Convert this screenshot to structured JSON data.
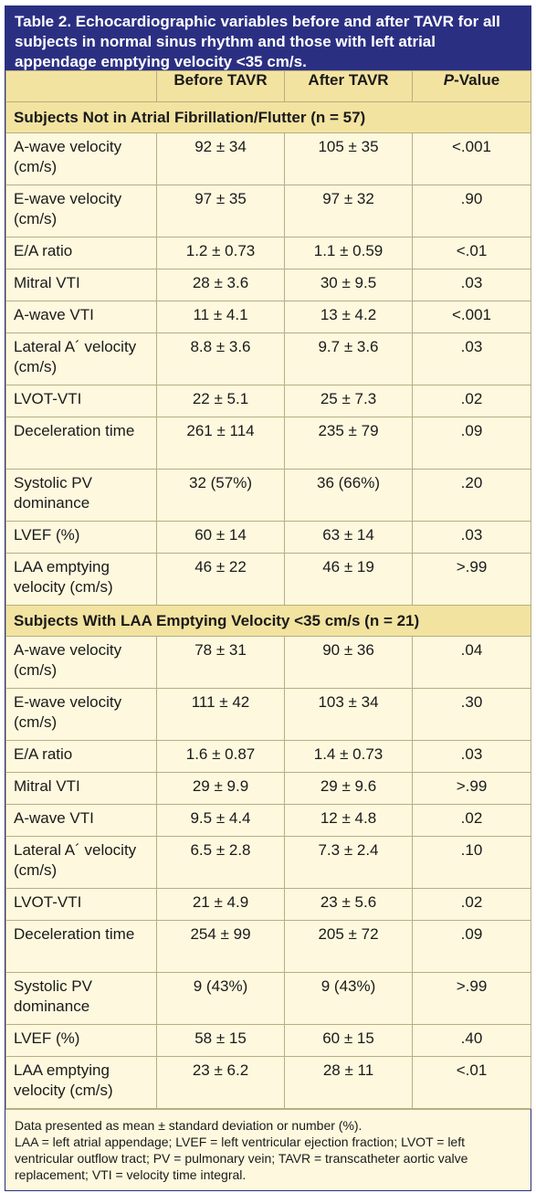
{
  "title": "Table 2. Echocardiographic variables before and after TAVR for all subjects in normal sinus rhythm and those with left atrial appendage emptying velocity <35 cm/s.",
  "columns": {
    "c0": "",
    "c1": "Before TAVR",
    "c2": "After TAVR",
    "c3_italic": "P",
    "c3_rest": "-Value"
  },
  "sections": [
    {
      "heading": "Subjects Not in Atrial Fibrillation/Flutter (n = 57)",
      "rows": [
        {
          "label": "A-wave velocity (cm/s)",
          "before": "92 ± 34",
          "after": "105 ± 35",
          "p": "<.001",
          "tall": true
        },
        {
          "label": "E-wave velocity (cm/s)",
          "before": "97 ± 35",
          "after": "97 ± 32",
          "p": ".90",
          "tall": true
        },
        {
          "label": "E/A ratio",
          "before": "1.2 ± 0.73",
          "after": "1.1 ± 0.59",
          "p": "<.01",
          "tall": false
        },
        {
          "label": "Mitral VTI",
          "before": "28 ± 3.6",
          "after": "30 ± 9.5",
          "p": ".03",
          "tall": false
        },
        {
          "label": "A-wave VTI",
          "before": "11 ± 4.1",
          "after": "13 ± 4.2",
          "p": "<.001",
          "tall": false
        },
        {
          "label": "Lateral A´ velocity (cm/s)",
          "before": "8.8 ± 3.6",
          "after": "9.7 ± 3.6",
          "p": ".03",
          "tall": true
        },
        {
          "label": "LVOT-VTI",
          "before": "22 ± 5.1",
          "after": "25 ± 7.3",
          "p": ".02",
          "tall": false
        },
        {
          "label": "Deceleration time",
          "before": "261 ± 114",
          "after": "235 ± 79",
          "p": ".09",
          "tall": true
        },
        {
          "label": "Systolic PV dominance",
          "before": "32 (57%)",
          "after": "36 (66%)",
          "p": ".20",
          "tall": true
        },
        {
          "label": "LVEF (%)",
          "before": "60 ± 14",
          "after": "63 ± 14",
          "p": ".03",
          "tall": false
        },
        {
          "label": "LAA emptying velocity (cm/s)",
          "before": "46 ± 22",
          "after": "46 ± 19",
          "p": ">.99",
          "tall": true
        }
      ]
    },
    {
      "heading": "Subjects With LAA Emptying Velocity <35 cm/s (n = 21)",
      "rows": [
        {
          "label": "A-wave velocity (cm/s)",
          "before": "78 ± 31",
          "after": "90 ± 36",
          "p": ".04",
          "tall": true
        },
        {
          "label": "E-wave velocity (cm/s)",
          "before": "111 ± 42",
          "after": "103 ± 34",
          "p": ".30",
          "tall": true
        },
        {
          "label": "E/A ratio",
          "before": "1.6 ± 0.87",
          "after": "1.4 ± 0.73",
          "p": ".03",
          "tall": false
        },
        {
          "label": "Mitral VTI",
          "before": "29 ± 9.9",
          "after": "29 ± 9.6",
          "p": ">.99",
          "tall": false
        },
        {
          "label": "A-wave VTI",
          "before": "9.5 ± 4.4",
          "after": "12 ± 4.8",
          "p": ".02",
          "tall": false
        },
        {
          "label": "Lateral A´ velocity (cm/s)",
          "before": "6.5 ± 2.8",
          "after": "7.3 ± 2.4",
          "p": ".10",
          "tall": true
        },
        {
          "label": "LVOT-VTI",
          "before": "21 ± 4.9",
          "after": "23 ± 5.6",
          "p": ".02",
          "tall": false
        },
        {
          "label": "Deceleration time",
          "before": "254 ± 99",
          "after": "205 ± 72",
          "p": ".09",
          "tall": true
        },
        {
          "label": "Systolic PV dominance",
          "before": "9 (43%)",
          "after": "9 (43%)",
          "p": ">.99",
          "tall": true
        },
        {
          "label": "LVEF (%)",
          "before": "58 ± 15",
          "after": "60 ± 15",
          "p": ".40",
          "tall": false
        },
        {
          "label": "LAA emptying velocity (cm/s)",
          "before": "23 ± 6.2",
          "after": "28 ± 11",
          "p": "<.01",
          "tall": true
        }
      ]
    }
  ],
  "footnotes": [
    "Data presented as mean ± standard deviation or number (%).",
    "LAA = left atrial appendage; LVEF = left ventricular ejection fraction; LVOT = left ventricular outflow tract; PV = pulmonary vein; TAVR = transcatheter aortic valve replacement; VTI = velocity time integral."
  ],
  "colors": {
    "header_bg": "#2b2f82",
    "section_bg": "#f3e3a0",
    "body_bg": "#fdf8de",
    "border": "#b6ae84"
  }
}
